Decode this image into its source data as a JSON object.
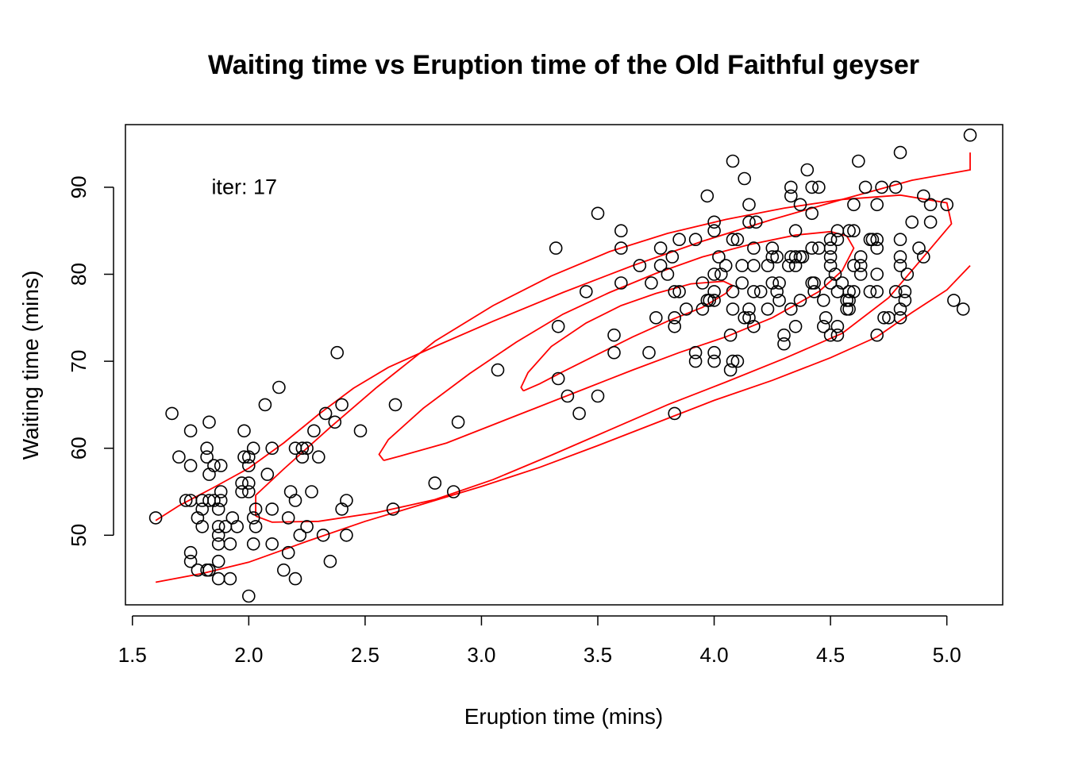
{
  "chart_data": {
    "type": "scatter",
    "title": "Waiting time vs Eruption time of the Old Faithful geyser",
    "xlabel": "Eruption time (mins)",
    "ylabel": "Waiting time (mins)",
    "xlim": [
      1.47,
      5.24
    ],
    "ylim": [
      42.0,
      97.2
    ],
    "xticks": [
      1.5,
      2.0,
      2.5,
      3.0,
      3.5,
      4.0,
      4.5,
      5.0
    ],
    "xtick_labels": [
      "1.5",
      "2.0",
      "2.5",
      "3.0",
      "3.5",
      "4.0",
      "4.5",
      "5.0"
    ],
    "yticks": [
      50,
      60,
      70,
      80,
      90
    ],
    "ytick_labels": [
      "50",
      "60",
      "70",
      "80",
      "90"
    ],
    "annotation": {
      "text": "iter: 17",
      "x": 1.84,
      "y": 89.2
    },
    "grid": false,
    "legend": null,
    "point_color": "#000000",
    "contour_color": "#ff0000",
    "points": [
      [
        1.6,
        52
      ],
      [
        1.67,
        64
      ],
      [
        1.7,
        59
      ],
      [
        1.73,
        54
      ],
      [
        1.75,
        62
      ],
      [
        1.75,
        58
      ],
      [
        1.75,
        54
      ],
      [
        1.75,
        48
      ],
      [
        1.75,
        47
      ],
      [
        1.78,
        46
      ],
      [
        1.78,
        52
      ],
      [
        1.8,
        54
      ],
      [
        1.8,
        53
      ],
      [
        1.8,
        51
      ],
      [
        1.82,
        60
      ],
      [
        1.82,
        59
      ],
      [
        1.82,
        46
      ],
      [
        1.83,
        63
      ],
      [
        1.83,
        57
      ],
      [
        1.83,
        54
      ],
      [
        1.83,
        46
      ],
      [
        1.85,
        58
      ],
      [
        1.85,
        54
      ],
      [
        1.87,
        53
      ],
      [
        1.87,
        51
      ],
      [
        1.87,
        50
      ],
      [
        1.87,
        49
      ],
      [
        1.87,
        47
      ],
      [
        1.87,
        45
      ],
      [
        1.88,
        58
      ],
      [
        1.88,
        55
      ],
      [
        1.88,
        54
      ],
      [
        1.9,
        51
      ],
      [
        1.92,
        49
      ],
      [
        1.92,
        45
      ],
      [
        1.93,
        52
      ],
      [
        1.95,
        51
      ],
      [
        1.97,
        56
      ],
      [
        1.97,
        55
      ],
      [
        1.98,
        59
      ],
      [
        1.98,
        62
      ],
      [
        2.0,
        59
      ],
      [
        2.0,
        58
      ],
      [
        2.0,
        56
      ],
      [
        2.0,
        55
      ],
      [
        2.0,
        43
      ],
      [
        2.02,
        60
      ],
      [
        2.02,
        52
      ],
      [
        2.02,
        49
      ],
      [
        2.03,
        53
      ],
      [
        2.03,
        51
      ],
      [
        2.07,
        65
      ],
      [
        2.08,
        57
      ],
      [
        2.1,
        60
      ],
      [
        2.1,
        53
      ],
      [
        2.1,
        49
      ],
      [
        2.13,
        67
      ],
      [
        2.15,
        46
      ],
      [
        2.17,
        52
      ],
      [
        2.17,
        48
      ],
      [
        2.18,
        55
      ],
      [
        2.2,
        60
      ],
      [
        2.2,
        54
      ],
      [
        2.2,
        45
      ],
      [
        2.22,
        50
      ],
      [
        2.23,
        60
      ],
      [
        2.23,
        59
      ],
      [
        2.25,
        60
      ],
      [
        2.25,
        51
      ],
      [
        2.27,
        55
      ],
      [
        2.28,
        62
      ],
      [
        2.3,
        59
      ],
      [
        2.32,
        50
      ],
      [
        2.33,
        64
      ],
      [
        2.35,
        47
      ],
      [
        2.37,
        63
      ],
      [
        2.38,
        71
      ],
      [
        2.4,
        65
      ],
      [
        2.4,
        53
      ],
      [
        2.42,
        54
      ],
      [
        2.42,
        50
      ],
      [
        2.48,
        62
      ],
      [
        2.62,
        53
      ],
      [
        2.63,
        65
      ],
      [
        2.8,
        56
      ],
      [
        2.88,
        55
      ],
      [
        2.9,
        63
      ],
      [
        3.07,
        69
      ],
      [
        3.32,
        83
      ],
      [
        3.33,
        74
      ],
      [
        3.33,
        68
      ],
      [
        3.37,
        66
      ],
      [
        3.42,
        64
      ],
      [
        3.45,
        78
      ],
      [
        3.5,
        87
      ],
      [
        3.5,
        66
      ],
      [
        3.57,
        73
      ],
      [
        3.57,
        71
      ],
      [
        3.6,
        85
      ],
      [
        3.6,
        83
      ],
      [
        3.6,
        79
      ],
      [
        3.68,
        81
      ],
      [
        3.72,
        71
      ],
      [
        3.73,
        79
      ],
      [
        3.75,
        75
      ],
      [
        3.77,
        83
      ],
      [
        3.77,
        81
      ],
      [
        3.8,
        80
      ],
      [
        3.82,
        82
      ],
      [
        3.83,
        78
      ],
      [
        3.83,
        75
      ],
      [
        3.83,
        74
      ],
      [
        3.83,
        64
      ],
      [
        3.85,
        84
      ],
      [
        3.85,
        78
      ],
      [
        3.88,
        76
      ],
      [
        3.92,
        84
      ],
      [
        3.92,
        71
      ],
      [
        3.92,
        70
      ],
      [
        3.95,
        79
      ],
      [
        3.95,
        76
      ],
      [
        3.97,
        89
      ],
      [
        3.97,
        77
      ],
      [
        3.98,
        77
      ],
      [
        4.0,
        86
      ],
      [
        4.0,
        85
      ],
      [
        4.0,
        80
      ],
      [
        4.0,
        78
      ],
      [
        4.0,
        77
      ],
      [
        4.0,
        71
      ],
      [
        4.0,
        70
      ],
      [
        4.02,
        82
      ],
      [
        4.03,
        80
      ],
      [
        4.05,
        81
      ],
      [
        4.07,
        73
      ],
      [
        4.07,
        69
      ],
      [
        4.08,
        93
      ],
      [
        4.08,
        84
      ],
      [
        4.08,
        78
      ],
      [
        4.08,
        76
      ],
      [
        4.08,
        70
      ],
      [
        4.1,
        84
      ],
      [
        4.1,
        70
      ],
      [
        4.12,
        81
      ],
      [
        4.12,
        79
      ],
      [
        4.13,
        91
      ],
      [
        4.13,
        75
      ],
      [
        4.15,
        88
      ],
      [
        4.15,
        86
      ],
      [
        4.15,
        76
      ],
      [
        4.15,
        75
      ],
      [
        4.17,
        83
      ],
      [
        4.17,
        81
      ],
      [
        4.17,
        78
      ],
      [
        4.17,
        74
      ],
      [
        4.18,
        86
      ],
      [
        4.2,
        78
      ],
      [
        4.23,
        81
      ],
      [
        4.23,
        76
      ],
      [
        4.25,
        83
      ],
      [
        4.25,
        82
      ],
      [
        4.25,
        79
      ],
      [
        4.27,
        82
      ],
      [
        4.27,
        78
      ],
      [
        4.28,
        79
      ],
      [
        4.28,
        77
      ],
      [
        4.3,
        73
      ],
      [
        4.3,
        72
      ],
      [
        4.32,
        81
      ],
      [
        4.33,
        90
      ],
      [
        4.33,
        89
      ],
      [
        4.33,
        82
      ],
      [
        4.33,
        76
      ],
      [
        4.35,
        85
      ],
      [
        4.35,
        82
      ],
      [
        4.35,
        81
      ],
      [
        4.35,
        74
      ],
      [
        4.37,
        88
      ],
      [
        4.37,
        82
      ],
      [
        4.37,
        77
      ],
      [
        4.38,
        82
      ],
      [
        4.4,
        92
      ],
      [
        4.42,
        90
      ],
      [
        4.42,
        87
      ],
      [
        4.42,
        83
      ],
      [
        4.42,
        79
      ],
      [
        4.43,
        79
      ],
      [
        4.43,
        78
      ],
      [
        4.45,
        90
      ],
      [
        4.45,
        83
      ],
      [
        4.47,
        77
      ],
      [
        4.47,
        74
      ],
      [
        4.48,
        75
      ],
      [
        4.5,
        84
      ],
      [
        4.5,
        83
      ],
      [
        4.5,
        82
      ],
      [
        4.5,
        81
      ],
      [
        4.5,
        79
      ],
      [
        4.5,
        73
      ],
      [
        4.52,
        80
      ],
      [
        4.53,
        85
      ],
      [
        4.53,
        84
      ],
      [
        4.53,
        78
      ],
      [
        4.53,
        74
      ],
      [
        4.53,
        73
      ],
      [
        4.55,
        79
      ],
      [
        4.57,
        77
      ],
      [
        4.57,
        76
      ],
      [
        4.58,
        85
      ],
      [
        4.58,
        78
      ],
      [
        4.58,
        77
      ],
      [
        4.58,
        76
      ],
      [
        4.6,
        88
      ],
      [
        4.6,
        85
      ],
      [
        4.6,
        81
      ],
      [
        4.6,
        78
      ],
      [
        4.62,
        93
      ],
      [
        4.63,
        82
      ],
      [
        4.63,
        81
      ],
      [
        4.63,
        80
      ],
      [
        4.65,
        90
      ],
      [
        4.67,
        84
      ],
      [
        4.67,
        78
      ],
      [
        4.68,
        84
      ],
      [
        4.7,
        88
      ],
      [
        4.7,
        84
      ],
      [
        4.7,
        83
      ],
      [
        4.7,
        80
      ],
      [
        4.7,
        78
      ],
      [
        4.7,
        73
      ],
      [
        4.72,
        90
      ],
      [
        4.73,
        75
      ],
      [
        4.75,
        75
      ],
      [
        4.78,
        90
      ],
      [
        4.78,
        78
      ],
      [
        4.8,
        94
      ],
      [
        4.8,
        84
      ],
      [
        4.8,
        82
      ],
      [
        4.8,
        81
      ],
      [
        4.8,
        76
      ],
      [
        4.8,
        75
      ],
      [
        4.82,
        78
      ],
      [
        4.82,
        77
      ],
      [
        4.83,
        80
      ],
      [
        4.85,
        86
      ],
      [
        4.88,
        83
      ],
      [
        4.9,
        89
      ],
      [
        4.9,
        82
      ],
      [
        4.93,
        88
      ],
      [
        4.93,
        86
      ],
      [
        5.0,
        88
      ],
      [
        5.03,
        77
      ],
      [
        5.07,
        76
      ],
      [
        5.1,
        96
      ]
    ],
    "contours": [
      [
        [
          3.18,
          66.6
        ],
        [
          3.25,
          67.4
        ],
        [
          3.35,
          68.8
        ],
        [
          3.5,
          70.8
        ],
        [
          3.65,
          72.8
        ],
        [
          3.8,
          74.6
        ],
        [
          3.95,
          76.2
        ],
        [
          4.05,
          77.8
        ],
        [
          4.08,
          78.7
        ],
        [
          4.04,
          79.2
        ],
        [
          3.9,
          78.9
        ],
        [
          3.75,
          77.8
        ],
        [
          3.6,
          76.4
        ],
        [
          3.45,
          74.4
        ],
        [
          3.3,
          71.7
        ],
        [
          3.2,
          68.7
        ],
        [
          3.17,
          67.0
        ],
        [
          3.18,
          66.6
        ]
      ],
      [
        [
          2.58,
          58.6
        ],
        [
          2.65,
          59.1
        ],
        [
          2.85,
          60.6
        ],
        [
          3.05,
          62.7
        ],
        [
          3.25,
          64.8
        ],
        [
          3.45,
          66.9
        ],
        [
          3.65,
          69.0
        ],
        [
          3.85,
          71.0
        ],
        [
          4.05,
          72.8
        ],
        [
          4.25,
          75.0
        ],
        [
          4.45,
          78.0
        ],
        [
          4.55,
          80.4
        ],
        [
          4.6,
          83.0
        ],
        [
          4.57,
          84.4
        ],
        [
          4.5,
          84.9
        ],
        [
          4.35,
          84.5
        ],
        [
          4.15,
          83.4
        ],
        [
          3.95,
          82.0
        ],
        [
          3.75,
          80.1
        ],
        [
          3.55,
          77.9
        ],
        [
          3.35,
          75.4
        ],
        [
          3.15,
          72.2
        ],
        [
          2.95,
          68.6
        ],
        [
          2.75,
          64.6
        ],
        [
          2.6,
          61.0
        ],
        [
          2.56,
          59.3
        ],
        [
          2.58,
          58.6
        ]
      ],
      [
        [
          2.03,
          52.2
        ],
        [
          2.1,
          51.5
        ],
        [
          2.3,
          51.6
        ],
        [
          2.55,
          52.6
        ],
        [
          2.8,
          54.1
        ],
        [
          3.05,
          56.4
        ],
        [
          3.3,
          59.2
        ],
        [
          3.55,
          62.1
        ],
        [
          3.8,
          65.0
        ],
        [
          4.05,
          67.6
        ],
        [
          4.3,
          70.3
        ],
        [
          4.55,
          73.2
        ],
        [
          4.75,
          77.3
        ],
        [
          4.9,
          82.0
        ],
        [
          5.02,
          85.8
        ],
        [
          5.0,
          88.2
        ],
        [
          4.8,
          89.1
        ],
        [
          4.55,
          88.6
        ],
        [
          4.3,
          87.6
        ],
        [
          4.05,
          86.3
        ],
        [
          3.8,
          84.7
        ],
        [
          3.55,
          82.6
        ],
        [
          3.3,
          79.8
        ],
        [
          3.05,
          76.4
        ],
        [
          2.8,
          72.3
        ],
        [
          2.55,
          67.0
        ],
        [
          2.35,
          62.4
        ],
        [
          2.15,
          57.6
        ],
        [
          2.03,
          54.6
        ],
        [
          2.03,
          52.2
        ]
      ],
      [
        [
          1.6,
          51.7
        ],
        [
          1.7,
          53.4
        ],
        [
          1.85,
          55.5
        ],
        [
          2.0,
          57.7
        ],
        [
          2.15,
          60.6
        ],
        [
          2.3,
          63.9
        ],
        [
          2.45,
          66.9
        ],
        [
          2.6,
          69.3
        ],
        [
          2.8,
          71.7
        ],
        [
          3.05,
          74.6
        ],
        [
          3.35,
          77.9
        ],
        [
          3.65,
          81.0
        ],
        [
          3.95,
          83.8
        ],
        [
          4.25,
          86.3
        ],
        [
          4.55,
          88.6
        ],
        [
          4.85,
          90.8
        ],
        [
          5.1,
          92.0
        ],
        [
          5.1,
          94.0
        ]
      ],
      [
        [
          1.6,
          44.6
        ],
        [
          1.8,
          45.6
        ],
        [
          2.0,
          46.9
        ],
        [
          2.25,
          49.3
        ],
        [
          2.5,
          51.6
        ],
        [
          2.75,
          53.6
        ],
        [
          3.0,
          55.6
        ],
        [
          3.25,
          57.8
        ],
        [
          3.5,
          60.3
        ],
        [
          3.75,
          62.9
        ],
        [
          4.0,
          65.5
        ],
        [
          4.25,
          67.8
        ],
        [
          4.5,
          70.4
        ],
        [
          4.7,
          72.8
        ],
        [
          4.85,
          75.6
        ],
        [
          5.0,
          78.2
        ],
        [
          5.1,
          81.0
        ]
      ]
    ]
  }
}
